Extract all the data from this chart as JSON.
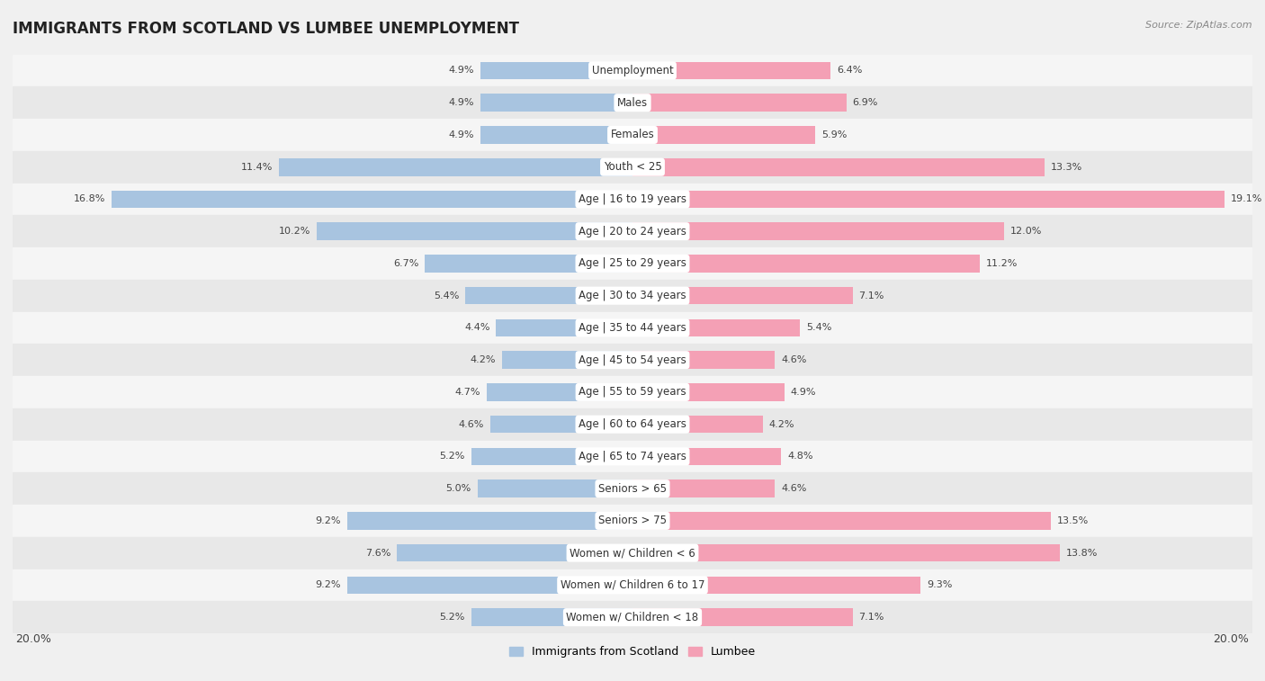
{
  "title": "IMMIGRANTS FROM SCOTLAND VS LUMBEE UNEMPLOYMENT",
  "source": "Source: ZipAtlas.com",
  "categories": [
    "Unemployment",
    "Males",
    "Females",
    "Youth < 25",
    "Age | 16 to 19 years",
    "Age | 20 to 24 years",
    "Age | 25 to 29 years",
    "Age | 30 to 34 years",
    "Age | 35 to 44 years",
    "Age | 45 to 54 years",
    "Age | 55 to 59 years",
    "Age | 60 to 64 years",
    "Age | 65 to 74 years",
    "Seniors > 65",
    "Seniors > 75",
    "Women w/ Children < 6",
    "Women w/ Children 6 to 17",
    "Women w/ Children < 18"
  ],
  "scotland_values": [
    4.9,
    4.9,
    4.9,
    11.4,
    16.8,
    10.2,
    6.7,
    5.4,
    4.4,
    4.2,
    4.7,
    4.6,
    5.2,
    5.0,
    9.2,
    7.6,
    9.2,
    5.2
  ],
  "lumbee_values": [
    6.4,
    6.9,
    5.9,
    13.3,
    19.1,
    12.0,
    11.2,
    7.1,
    5.4,
    4.6,
    4.9,
    4.2,
    4.8,
    4.6,
    13.5,
    13.8,
    9.3,
    7.1
  ],
  "scotland_color": "#a8c4e0",
  "lumbee_color": "#f4a0b5",
  "row_color_even": "#f5f5f5",
  "row_color_odd": "#e8e8e8",
  "background_color": "#f0f0f0",
  "max_value": 20.0,
  "legend_scotland": "Immigrants from Scotland",
  "legend_lumbee": "Lumbee",
  "title_fontsize": 12,
  "label_fontsize": 8.5,
  "value_fontsize": 8
}
